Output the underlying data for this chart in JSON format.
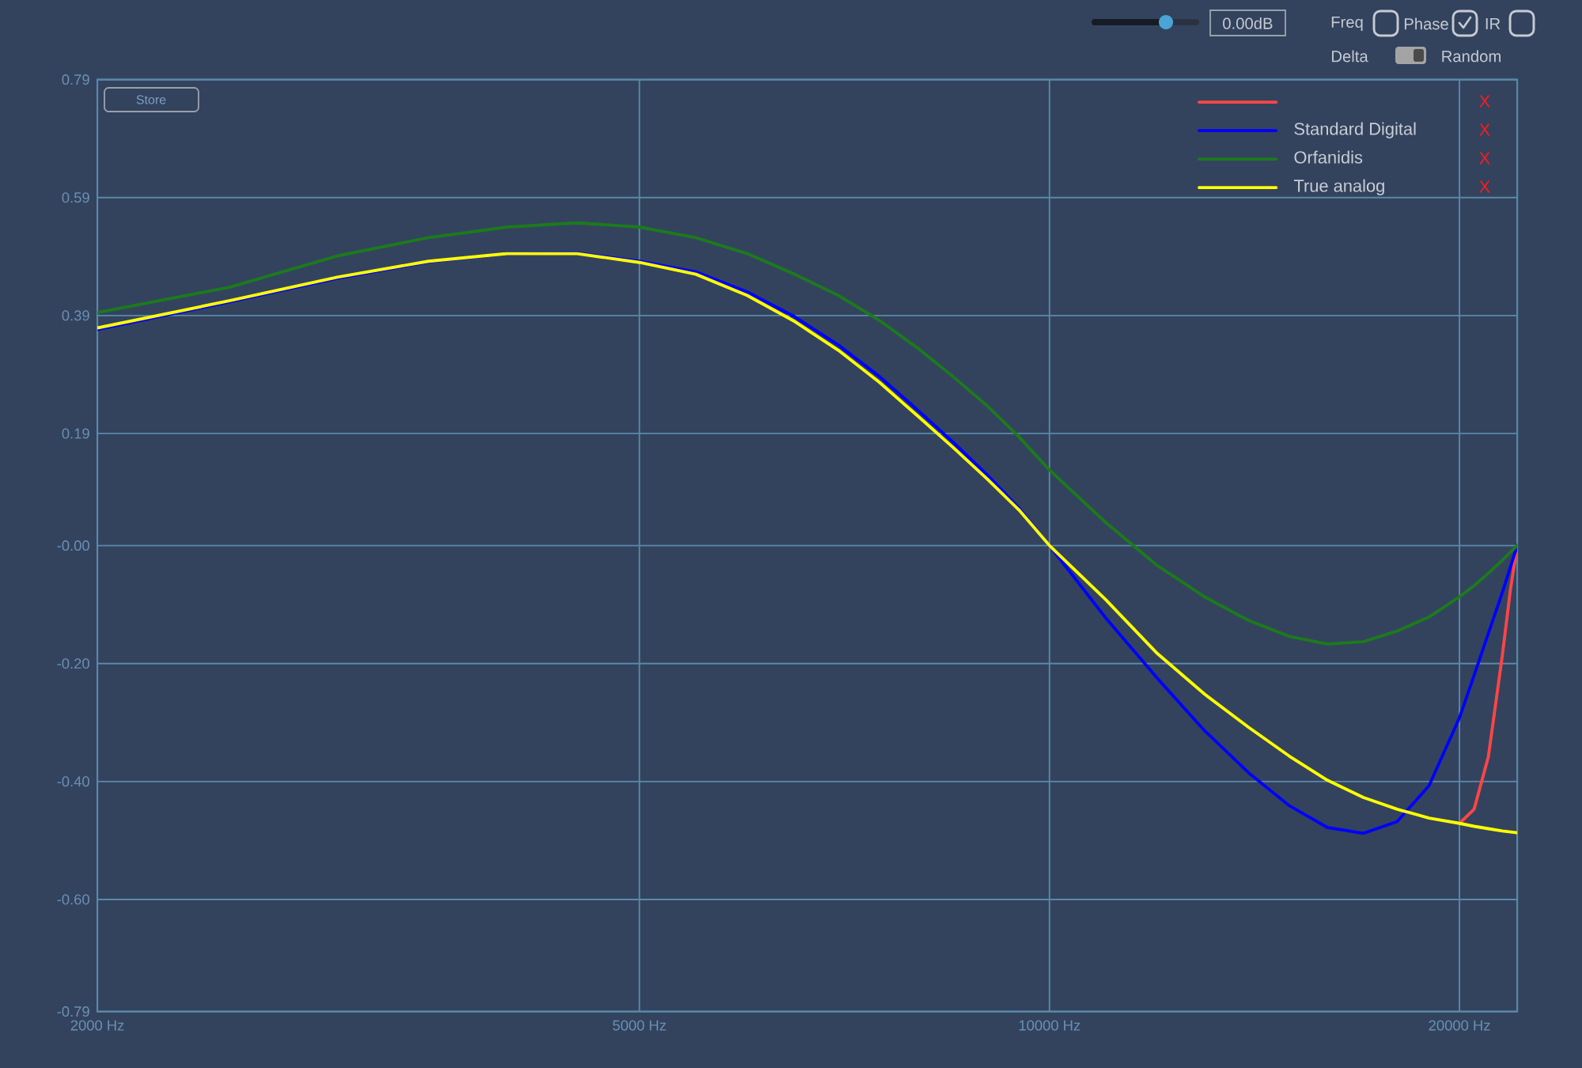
{
  "chart_data": {
    "type": "line",
    "x": [
      2000,
      2500,
      3000,
      3500,
      4000,
      4500,
      5000,
      5500,
      6000,
      6500,
      7000,
      7500,
      8000,
      8500,
      9000,
      9500,
      10000,
      11000,
      12000,
      13000,
      14000,
      15000,
      16000,
      17000,
      18000,
      19000,
      20000,
      20500,
      21000,
      21500,
      22050
    ],
    "xlim": [
      2000,
      22050
    ],
    "xticks": [
      {
        "value": 2000,
        "label": "2000 Hz"
      },
      {
        "value": 5000,
        "label": "5000 Hz"
      },
      {
        "value": 10000,
        "label": "10000 Hz"
      },
      {
        "value": 20000,
        "label": "20000 Hz"
      }
    ],
    "ylim": [
      -0.79,
      0.79
    ],
    "yticks": [
      -0.79,
      {
        "value": -0.6,
        "label": "-0.60"
      },
      {
        "value": -0.4,
        "label": "-0.40"
      },
      {
        "value": -0.2,
        "label": "-0.20"
      },
      {
        "value": 0,
        "label": "-0.00"
      },
      0.19,
      0.39,
      0.59,
      0.79
    ],
    "log": "x",
    "grid": true,
    "legend": "top right",
    "series": [
      {
        "color": "#ff4646",
        "x": [
          20000,
          20500,
          21000,
          21500,
          21800,
          22050
        ],
        "values": [
          -0.471,
          -0.447,
          -0.358,
          -0.187,
          -0.074,
          0
        ]
      },
      {
        "name": "Standard Digital",
        "color": "#0000ff",
        "values": [
          0.366,
          0.413,
          0.453,
          0.481,
          0.495,
          0.496,
          0.482,
          0.464,
          0.43,
          0.388,
          0.34,
          0.287,
          0.23,
          0.175,
          0.12,
          0.063,
          0,
          -0.123,
          -0.225,
          -0.314,
          -0.385,
          -0.441,
          -0.478,
          -0.488,
          -0.468,
          -0.407,
          -0.292,
          -0.22,
          -0.149,
          -0.08,
          0
        ]
      },
      {
        "name": "Orfanidis",
        "color": "#1c7a1c",
        "values": [
          0.395,
          0.438,
          0.491,
          0.522,
          0.54,
          0.547,
          0.54,
          0.522,
          0.495,
          0.46,
          0.424,
          0.382,
          0.335,
          0.286,
          0.237,
          0.184,
          0.128,
          0.039,
          -0.034,
          -0.087,
          -0.127,
          -0.154,
          -0.167,
          -0.163,
          -0.145,
          -0.121,
          -0.087,
          -0.068,
          -0.047,
          -0.025,
          0
        ]
      },
      {
        "name": "True analog",
        "color": "#ffff00",
        "values": [
          0.369,
          0.415,
          0.455,
          0.482,
          0.495,
          0.495,
          0.48,
          0.46,
          0.424,
          0.38,
          0.331,
          0.277,
          0.22,
          0.166,
          0.113,
          0.06,
          0,
          -0.092,
          -0.183,
          -0.252,
          -0.308,
          -0.357,
          -0.398,
          -0.427,
          -0.447,
          -0.462,
          -0.471,
          -0.476,
          -0.48,
          -0.484,
          -0.487
        ]
      }
    ],
    "annotations": [
      "Store",
      "0.00dB",
      "Freq",
      "Phase",
      "IR",
      "Delta",
      "Random",
      "X",
      "X",
      "X",
      "X"
    ]
  }
}
